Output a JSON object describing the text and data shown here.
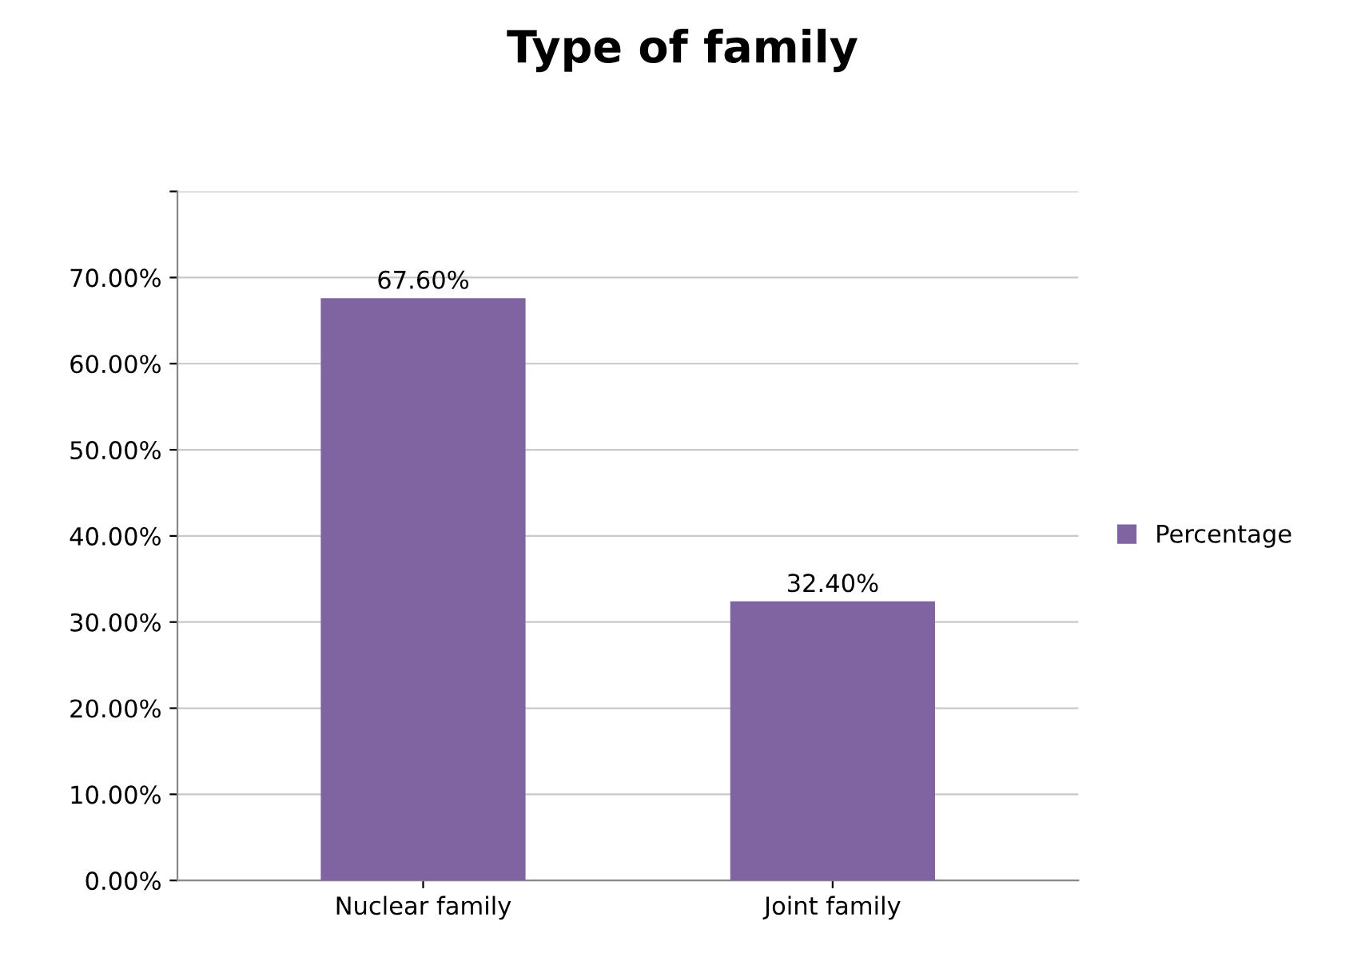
{
  "chart_data": {
    "type": "bar",
    "title": "Type of family",
    "categories": [
      "Nuclear family",
      "Joint family"
    ],
    "series": [
      {
        "name": "Percentage",
        "color": "#8064a2",
        "values": [
          67.6,
          32.4
        ],
        "value_labels": [
          "67.60%",
          "32.40%"
        ]
      }
    ],
    "ylim": [
      0,
      80
    ],
    "yticks": [
      {
        "value": 0,
        "label": "0.00%"
      },
      {
        "value": 10,
        "label": "10.00%"
      },
      {
        "value": 20,
        "label": "20.00%"
      },
      {
        "value": 30,
        "label": "30.00%"
      },
      {
        "value": 40,
        "label": "40.00%"
      },
      {
        "value": 50,
        "label": "50.00%"
      },
      {
        "value": 60,
        "label": "60.00%"
      },
      {
        "value": 70,
        "label": "70.00%"
      },
      {
        "value": 80,
        "label": null
      }
    ],
    "grid": "y",
    "legend": "right"
  }
}
